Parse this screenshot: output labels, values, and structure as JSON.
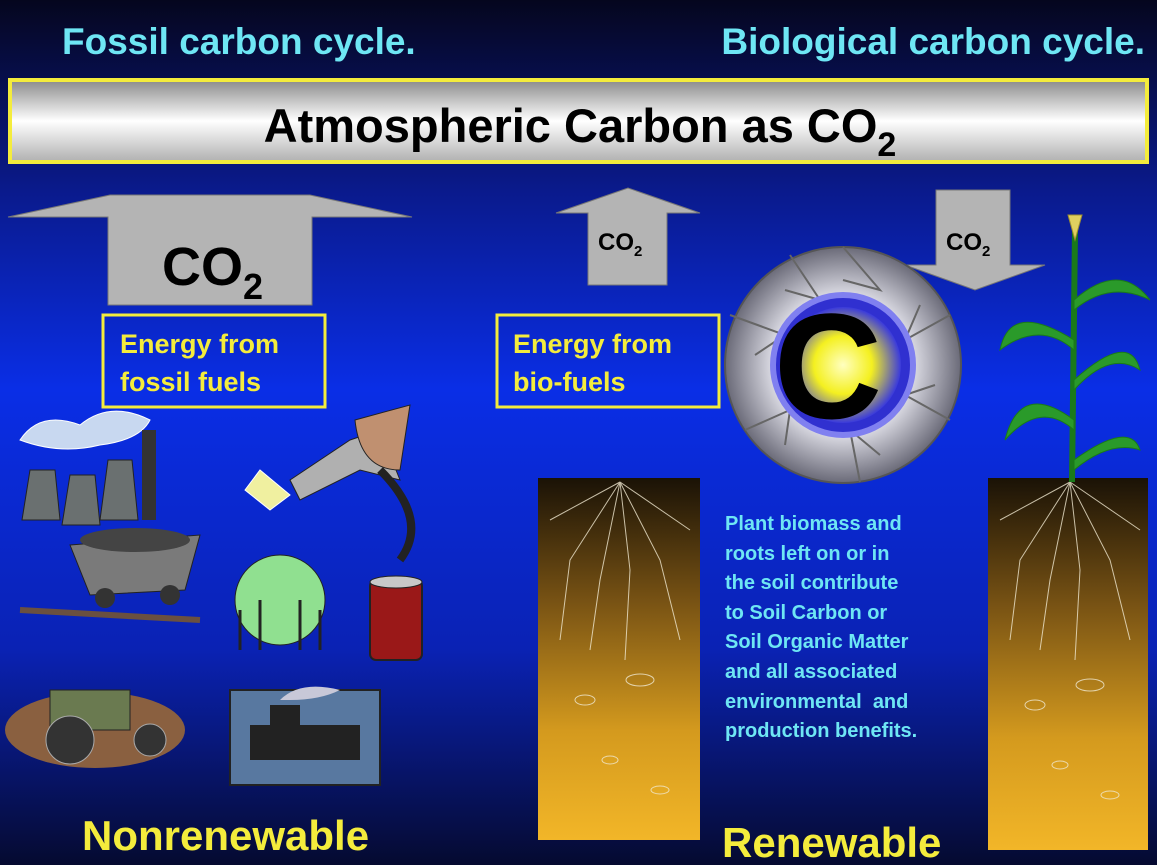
{
  "header": {
    "left": "Fossil carbon cycle.",
    "right": "Biological carbon cycle."
  },
  "banner": {
    "text": "Atmospheric Carbon as CO",
    "subscript": "2"
  },
  "arrows": [
    {
      "label": "CO",
      "subscript": "2"
    },
    {
      "label": "CO",
      "subscript": "2"
    },
    {
      "label": "CO",
      "subscript": "2"
    }
  ],
  "boxes": [
    {
      "lines": [
        "Energy from",
        "fossil fuels"
      ]
    },
    {
      "lines": [
        "Energy from",
        "bio-fuels"
      ]
    }
  ],
  "cycle": {
    "label": "C"
  },
  "note": {
    "lines": [
      "Plant biomass and",
      "roots left on or in",
      "the soil contribute",
      "to Soil Carbon or",
      "Soil Organic Matter",
      "and all associated",
      "environmental  and",
      "production benefits."
    ]
  },
  "footer": {
    "left": "Nonrenewable",
    "right": "Renewable"
  }
}
